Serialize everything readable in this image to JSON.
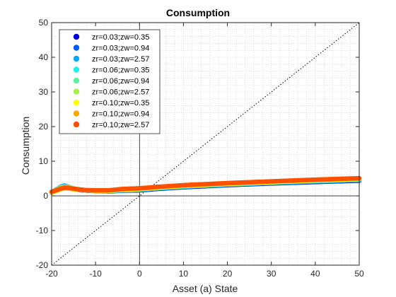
{
  "chart_data": {
    "type": "scatter",
    "title": "Consumption",
    "xlabel": "Asset (a) State",
    "ylabel": "Consumption",
    "xlim": [
      -20,
      50
    ],
    "ylim": [
      -20,
      50
    ],
    "xticks": [
      "-20",
      "-10",
      "0",
      "10",
      "20",
      "30",
      "40",
      "50"
    ],
    "yticks": [
      "-20",
      "-10",
      "0",
      "10",
      "20",
      "30",
      "40",
      "50"
    ],
    "grid": "minor-dotted",
    "legend_position": "top-left",
    "reference_lines": {
      "x": 0,
      "y": 0,
      "diagonal": "y=x dotted"
    },
    "series": [
      {
        "name": "zr=0.03;zw=0.35",
        "color": "#0000d8",
        "points": [
          [
            -20,
            0.9
          ],
          [
            -19,
            1.6
          ],
          [
            -18,
            2.4
          ],
          [
            -17.3,
            2.8
          ],
          [
            -16.5,
            2.5
          ],
          [
            -15,
            1.9
          ],
          [
            -13,
            1.6
          ],
          [
            -10,
            1.4
          ],
          [
            -7,
            1.3
          ],
          [
            -4,
            1.5
          ],
          [
            0,
            1.6
          ],
          [
            5,
            2.1
          ],
          [
            10,
            2.5
          ],
          [
            20,
            3.1
          ],
          [
            30,
            3.6
          ],
          [
            40,
            4.0
          ],
          [
            50,
            4.4
          ]
        ]
      },
      {
        "name": "zr=0.03;zw=0.94",
        "color": "#005aff",
        "points": [
          [
            -20,
            1.0
          ],
          [
            -19,
            1.7
          ],
          [
            -18,
            2.5
          ],
          [
            -17.2,
            2.9
          ],
          [
            -16.4,
            2.6
          ],
          [
            -15,
            2.0
          ],
          [
            -13,
            1.6
          ],
          [
            -10,
            1.4
          ],
          [
            -7,
            1.4
          ],
          [
            -4,
            1.5
          ],
          [
            0,
            1.7
          ],
          [
            5,
            2.2
          ],
          [
            10,
            2.6
          ],
          [
            20,
            3.2
          ],
          [
            30,
            3.7
          ],
          [
            40,
            4.1
          ],
          [
            50,
            4.5
          ]
        ]
      },
      {
        "name": "zr=0.03;zw=2.57",
        "color": "#00a8ff",
        "points": [
          [
            -20,
            1.0
          ],
          [
            -19,
            1.8
          ],
          [
            -18,
            2.6
          ],
          [
            -17.1,
            3.0
          ],
          [
            -16.3,
            2.7
          ],
          [
            -15,
            2.1
          ],
          [
            -13,
            1.7
          ],
          [
            -10,
            1.5
          ],
          [
            -7,
            1.4
          ],
          [
            -4,
            1.6
          ],
          [
            0,
            1.8
          ],
          [
            5,
            2.3
          ],
          [
            10,
            2.7
          ],
          [
            20,
            3.3
          ],
          [
            30,
            3.8
          ],
          [
            40,
            4.2
          ],
          [
            50,
            4.6
          ]
        ]
      },
      {
        "name": "zr=0.06;zw=0.35",
        "color": "#1ef0f0",
        "points": [
          [
            -20,
            0.9
          ],
          [
            -19,
            1.5
          ],
          [
            -18,
            2.2
          ],
          [
            -17,
            2.6
          ],
          [
            -16,
            2.4
          ],
          [
            -14.5,
            1.9
          ],
          [
            -12.5,
            1.6
          ],
          [
            -10,
            1.4
          ],
          [
            -7,
            1.4
          ],
          [
            -4,
            1.6
          ],
          [
            0,
            1.8
          ],
          [
            5,
            2.3
          ],
          [
            10,
            2.7
          ],
          [
            20,
            3.3
          ],
          [
            30,
            3.8
          ],
          [
            40,
            4.3
          ],
          [
            50,
            4.7
          ]
        ]
      },
      {
        "name": "zr=0.06;zw=0.94",
        "color": "#5ef0a0",
        "points": [
          [
            -20,
            1.0
          ],
          [
            -19,
            1.6
          ],
          [
            -18,
            2.3
          ],
          [
            -17,
            2.6
          ],
          [
            -16,
            2.4
          ],
          [
            -14.5,
            2.0
          ],
          [
            -12.5,
            1.7
          ],
          [
            -10,
            1.5
          ],
          [
            -7,
            1.4
          ],
          [
            -4,
            1.7
          ],
          [
            0,
            1.9
          ],
          [
            5,
            2.4
          ],
          [
            10,
            2.8
          ],
          [
            20,
            3.4
          ],
          [
            30,
            3.9
          ],
          [
            40,
            4.4
          ],
          [
            50,
            4.8
          ]
        ]
      },
      {
        "name": "zr=0.06;zw=2.57",
        "color": "#a8f050",
        "points": [
          [
            -20,
            1.1
          ],
          [
            -19,
            1.7
          ],
          [
            -18,
            2.4
          ],
          [
            -17,
            2.7
          ],
          [
            -16,
            2.5
          ],
          [
            -14.5,
            2.0
          ],
          [
            -12.5,
            1.7
          ],
          [
            -10,
            1.5
          ],
          [
            -7,
            1.5
          ],
          [
            -4,
            1.7
          ],
          [
            0,
            2.0
          ],
          [
            5,
            2.5
          ],
          [
            10,
            2.9
          ],
          [
            20,
            3.5
          ],
          [
            30,
            4.0
          ],
          [
            40,
            4.5
          ],
          [
            50,
            4.9
          ]
        ]
      },
      {
        "name": "zr=0.10;zw=0.35",
        "color": "#ffff00",
        "points": [
          [
            -20,
            1.0
          ],
          [
            -19,
            1.4
          ],
          [
            -18,
            1.9
          ],
          [
            -17,
            2.2
          ],
          [
            -16,
            2.1
          ],
          [
            -14.5,
            1.8
          ],
          [
            -12.5,
            1.6
          ],
          [
            -10,
            1.5
          ],
          [
            -7,
            1.5
          ],
          [
            -4,
            1.8
          ],
          [
            0,
            2.0
          ],
          [
            5,
            2.5
          ],
          [
            10,
            2.9
          ],
          [
            20,
            3.5
          ],
          [
            30,
            4.0
          ],
          [
            40,
            4.5
          ],
          [
            50,
            4.9
          ]
        ]
      },
      {
        "name": "zr=0.10;zw=0.94",
        "color": "#ffa500",
        "points": [
          [
            -20,
            1.1
          ],
          [
            -19,
            1.5
          ],
          [
            -18,
            2.0
          ],
          [
            -17,
            2.3
          ],
          [
            -16,
            2.2
          ],
          [
            -14.5,
            1.9
          ],
          [
            -12.5,
            1.6
          ],
          [
            -10,
            1.5
          ],
          [
            -7,
            1.6
          ],
          [
            -4,
            1.9
          ],
          [
            0,
            2.1
          ],
          [
            5,
            2.6
          ],
          [
            10,
            3.0
          ],
          [
            20,
            3.6
          ],
          [
            30,
            4.1
          ],
          [
            40,
            4.6
          ],
          [
            50,
            5.0
          ]
        ]
      },
      {
        "name": "zr=0.10;zw=2.57",
        "color": "#ff5000",
        "points": [
          [
            -20,
            1.2
          ],
          [
            -19,
            1.6
          ],
          [
            -18,
            2.1
          ],
          [
            -17,
            2.4
          ],
          [
            -16,
            2.3
          ],
          [
            -14.5,
            2.0
          ],
          [
            -12.5,
            1.7
          ],
          [
            -10,
            1.6
          ],
          [
            -7,
            1.6
          ],
          [
            -4,
            2.0
          ],
          [
            0,
            2.2
          ],
          [
            5,
            2.7
          ],
          [
            10,
            3.1
          ],
          [
            20,
            3.7
          ],
          [
            30,
            4.2
          ],
          [
            40,
            4.7
          ],
          [
            50,
            5.1
          ]
        ]
      }
    ]
  }
}
